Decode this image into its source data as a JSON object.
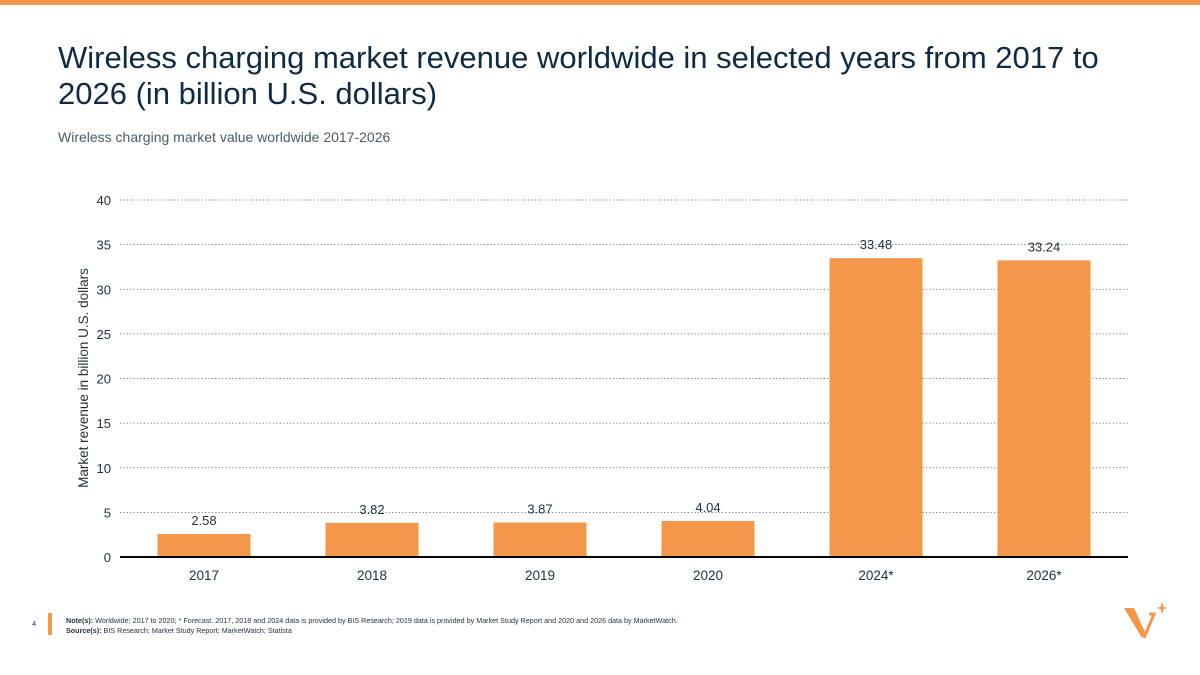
{
  "title": "Wireless charging market revenue worldwide in selected years from 2017 to 2026 (in billion U.S. dollars)",
  "subtitle": "Wireless charging market value worldwide 2017-2026",
  "page_number": "4",
  "footer": {
    "notes_label": "Note(s):",
    "notes_text": " Worldwide; 2017 to 2020; * Forecast. 2017, 2018 and 2024 data is provided by BIS Research; 2019 data is provided by Market Study Report and 2020 and 2026 data by MarketWatch.",
    "sources_label": "Source(s):",
    "sources_text": " BIS Research; Market Study Report; MarketWatch; Statista"
  },
  "colors": {
    "accent": "#f5974a",
    "title": "#0f2a44",
    "bar": "#f5974a"
  },
  "logo_icon": "statista-v-logo-icon",
  "chart_data": {
    "type": "bar",
    "title": "Wireless charging market revenue worldwide in selected years from 2017 to 2026 (in billion U.S. dollars)",
    "subtitle": "Wireless charging market value worldwide 2017-2026",
    "xlabel": "",
    "ylabel": "Market revenue in billion U.S. dollars",
    "categories": [
      "2017",
      "2018",
      "2019",
      "2020",
      "2024*",
      "2026*"
    ],
    "values": [
      2.58,
      3.82,
      3.87,
      4.04,
      33.48,
      33.24
    ],
    "value_labels": [
      "2.58",
      "3.82",
      "3.87",
      "4.04",
      "33.48",
      "33.24"
    ],
    "ylim": [
      0,
      40
    ],
    "yticks": [
      0,
      5,
      10,
      15,
      20,
      25,
      30,
      35,
      40
    ],
    "grid": true,
    "legend": "none"
  }
}
